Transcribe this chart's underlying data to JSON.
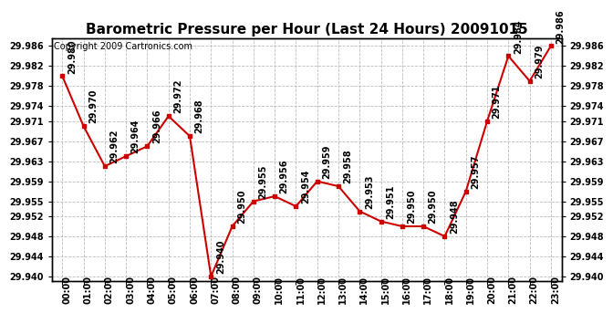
{
  "title": "Barometric Pressure per Hour (Last 24 Hours) 20091015",
  "copyright": "Copyright 2009 Cartronics.com",
  "hours": [
    "00:00",
    "01:00",
    "02:00",
    "03:00",
    "04:00",
    "05:00",
    "06:00",
    "07:00",
    "08:00",
    "09:00",
    "10:00",
    "11:00",
    "12:00",
    "13:00",
    "14:00",
    "15:00",
    "16:00",
    "17:00",
    "18:00",
    "19:00",
    "20:00",
    "21:00",
    "22:00",
    "23:00"
  ],
  "values": [
    29.98,
    29.97,
    29.962,
    29.964,
    29.966,
    29.972,
    29.968,
    29.94,
    29.95,
    29.955,
    29.956,
    29.954,
    29.959,
    29.958,
    29.953,
    29.951,
    29.95,
    29.95,
    29.948,
    29.957,
    29.971,
    29.984,
    29.979,
    29.986
  ],
  "ylim_min": 29.939,
  "ylim_max": 29.9875,
  "yticks": [
    29.94,
    29.944,
    29.948,
    29.952,
    29.955,
    29.959,
    29.963,
    29.967,
    29.971,
    29.974,
    29.978,
    29.982,
    29.986
  ],
  "line_color": "#cc0000",
  "marker_color": "#cc0000",
  "bg_color": "#ffffff",
  "grid_color": "#bbbbbb",
  "title_fontsize": 11,
  "tick_fontsize": 7,
  "annotation_fontsize": 7,
  "copyright_fontsize": 7
}
